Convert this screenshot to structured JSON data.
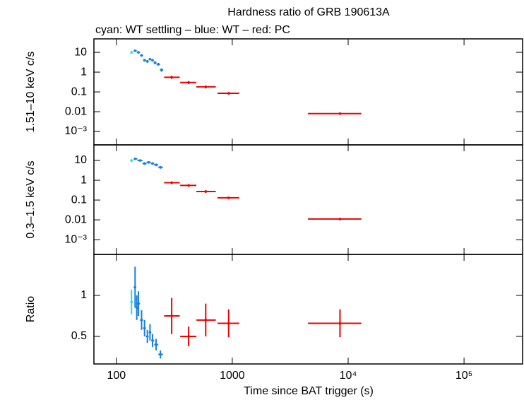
{
  "chart_data": [
    {
      "type": "scatter",
      "title": "Hardness ratio of GRB 190613A",
      "subtitle": "cyan: WT settling – blue: WT – red: PC",
      "ylabel": "1.51–10 keV c/s",
      "log_x": true,
      "log_y": true,
      "xlim": [
        64,
        320000
      ],
      "ylim": [
        0.00021,
        48
      ],
      "yticks": [
        10,
        1,
        0.1,
        0.01,
        {
          "value": 0.001,
          "label": "10⁻³"
        }
      ],
      "series": [
        {
          "name": "WT settling",
          "color": "#22dddd",
          "x": [
            135
          ],
          "xmin": [
            132
          ],
          "xmax": [
            138
          ],
          "values": [
            10
          ],
          "yerr": [
            1.5
          ]
        },
        {
          "name": "WT",
          "color": "#1a7fe0",
          "x": [
            145,
            155,
            165,
            175,
            185,
            195,
            205,
            215,
            230,
            245
          ],
          "xmin": [
            141,
            150,
            160,
            170,
            180,
            190,
            200,
            210,
            222,
            238
          ],
          "xmax": [
            150,
            160,
            170,
            180,
            190,
            200,
            210,
            222,
            238,
            254
          ],
          "values": [
            12,
            10,
            7,
            4,
            3.5,
            4.5,
            4,
            3,
            2.5,
            1.3
          ],
          "yerr": [
            1.5,
            1.3,
            1,
            0.6,
            0.5,
            0.6,
            0.6,
            0.5,
            0.4,
            0.25
          ]
        },
        {
          "name": "PC",
          "color": "#ee0000",
          "x": [
            300,
            420,
            590,
            930,
            8500
          ],
          "xmin": [
            258,
            355,
            490,
            745,
            4500
          ],
          "xmax": [
            352,
            490,
            720,
            1150,
            13000
          ],
          "values": [
            0.55,
            0.3,
            0.18,
            0.085,
            0.008
          ],
          "yerr": [
            0.1,
            0.05,
            0.03,
            0.012,
            0.001
          ]
        }
      ]
    },
    {
      "type": "scatter",
      "ylabel": "0.3–1.5 keV c/s",
      "log_x": true,
      "log_y": true,
      "xlim": [
        64,
        320000
      ],
      "ylim": [
        0.00018,
        61
      ],
      "yticks": [
        10,
        1,
        0.1,
        0.01,
        {
          "value": 0.001,
          "label": "10⁻³"
        }
      ],
      "series": [
        {
          "name": "WT settling",
          "color": "#22dddd",
          "x": [
            135
          ],
          "xmin": [
            132
          ],
          "xmax": [
            138
          ],
          "values": [
            10
          ],
          "yerr": [
            1.5
          ]
        },
        {
          "name": "WT",
          "color": "#1a7fe0",
          "x": [
            145,
            160,
            175,
            190,
            205,
            220,
            240
          ],
          "xmin": [
            141,
            152,
            168,
            182,
            198,
            212,
            230
          ],
          "xmax": [
            152,
            168,
            182,
            198,
            212,
            230,
            252
          ],
          "values": [
            12,
            10,
            7,
            8,
            7,
            6,
            4.5
          ],
          "yerr": [
            1.5,
            1.3,
            1,
            1.1,
            1,
            0.9,
            0.7
          ]
        },
        {
          "name": "PC",
          "color": "#ee0000",
          "x": [
            300,
            420,
            590,
            930,
            8500
          ],
          "xmin": [
            258,
            355,
            490,
            745,
            4500
          ],
          "xmax": [
            352,
            490,
            720,
            1150,
            13000
          ],
          "values": [
            0.75,
            0.55,
            0.27,
            0.13,
            0.011
          ],
          "yerr": [
            0.12,
            0.08,
            0.04,
            0.018,
            0.0015
          ]
        }
      ]
    },
    {
      "type": "scatter",
      "ylabel": "Ratio",
      "xlabel": "Time since BAT trigger (s)",
      "log_x": true,
      "log_y": false,
      "xlim": [
        64,
        320000
      ],
      "ylim": [
        0.164,
        1.5
      ],
      "yticks": [
        1,
        0.5
      ],
      "xticks": [
        100,
        1000,
        {
          "value": 10000,
          "label": "10⁴"
        },
        {
          "value": 100000,
          "label": "10⁵"
        }
      ],
      "series": [
        {
          "name": "WT settling",
          "color": "#22dddd",
          "x": [
            135
          ],
          "xmin": [
            132
          ],
          "xmax": [
            138
          ],
          "values": [
            0.92
          ],
          "yerr": [
            0.15
          ]
        },
        {
          "name": "WT",
          "color": "#1a7fe0",
          "x": [
            145,
            150,
            155,
            165,
            175,
            185,
            195,
            205,
            220,
            240
          ],
          "xmin": [
            141,
            147,
            152,
            160,
            170,
            180,
            190,
            200,
            212,
            230
          ],
          "xmax": [
            147,
            152,
            160,
            170,
            180,
            190,
            200,
            212,
            230,
            252
          ],
          "values": [
            1.1,
            0.85,
            0.9,
            0.7,
            0.6,
            0.5,
            0.55,
            0.45,
            0.4,
            0.28
          ],
          "yerr": [
            0.25,
            0.15,
            0.15,
            0.12,
            0.1,
            0.08,
            0.1,
            0.08,
            0.07,
            0.05
          ]
        },
        {
          "name": "PC",
          "color": "#ee0000",
          "x": [
            300,
            420,
            590,
            930,
            8500
          ],
          "xmin": [
            258,
            355,
            490,
            745,
            4500
          ],
          "xmax": [
            352,
            490,
            720,
            1150,
            13000
          ],
          "values": [
            0.75,
            0.5,
            0.7,
            0.66,
            0.66
          ],
          "yerr": [
            0.22,
            0.12,
            0.2,
            0.17,
            0.17
          ]
        }
      ]
    }
  ]
}
